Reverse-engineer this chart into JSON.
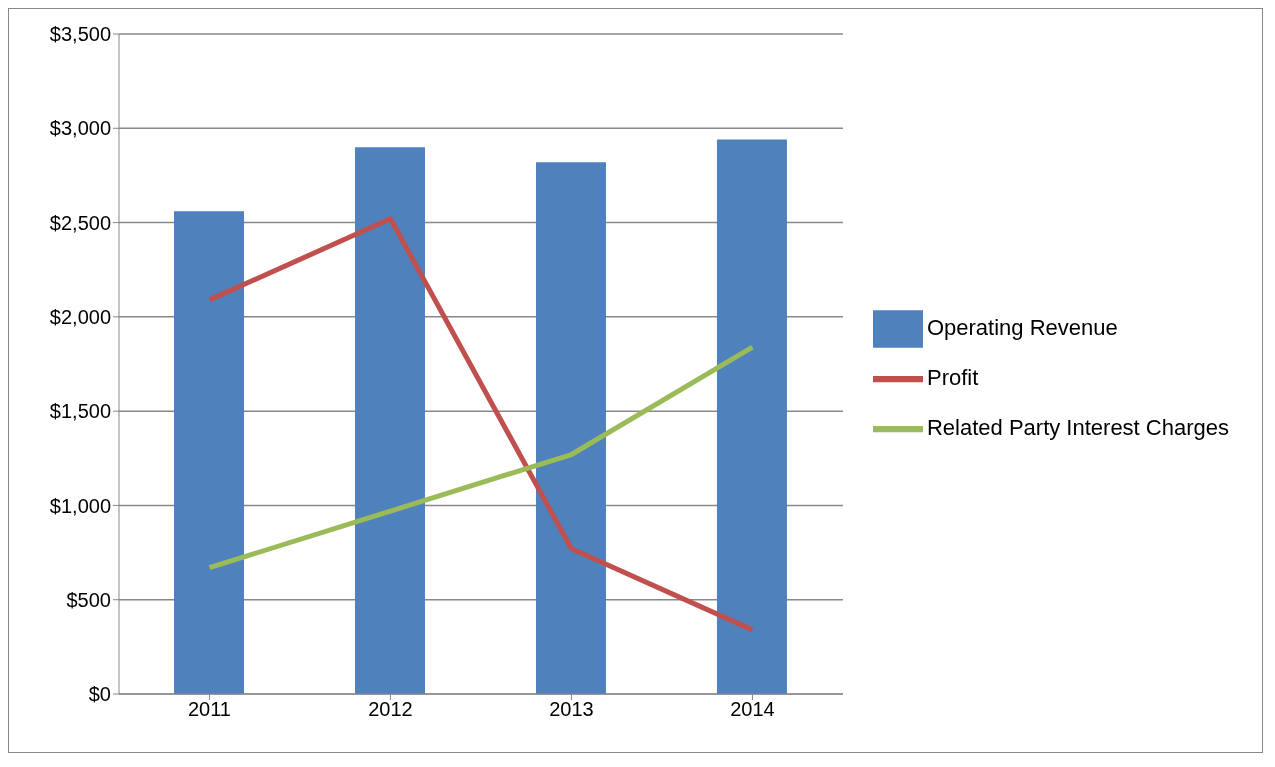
{
  "chart_data": {
    "type": "bar",
    "categories": [
      "2011",
      "2012",
      "2013",
      "2014"
    ],
    "series": [
      {
        "name": "Operating Revenue",
        "color": "#4f81bd",
        "values": [
          2560,
          2900,
          2820,
          2940
        ]
      },
      {
        "name": "Profit",
        "type": "line",
        "color": "#c0504d",
        "values": [
          2090,
          2520,
          770,
          340
        ]
      },
      {
        "name": "Related Party Interest Charges",
        "type": "line",
        "color": "#9bbb59",
        "values": [
          670,
          970,
          1270,
          1840
        ]
      }
    ],
    "ylim": [
      0,
      3500
    ],
    "yticks": [
      {
        "value": 0,
        "label": "$0"
      },
      {
        "value": 500,
        "label": "$500"
      },
      {
        "value": 1000,
        "label": "$1,000"
      },
      {
        "value": 1500,
        "label": "$1,500"
      },
      {
        "value": 2000,
        "label": "$2,000"
      },
      {
        "value": 2500,
        "label": "$2,500"
      },
      {
        "value": 3000,
        "label": "$3,000"
      },
      {
        "value": 3500,
        "label": "$3,500"
      }
    ],
    "grid": "y",
    "legend": "right",
    "marker": "none"
  }
}
